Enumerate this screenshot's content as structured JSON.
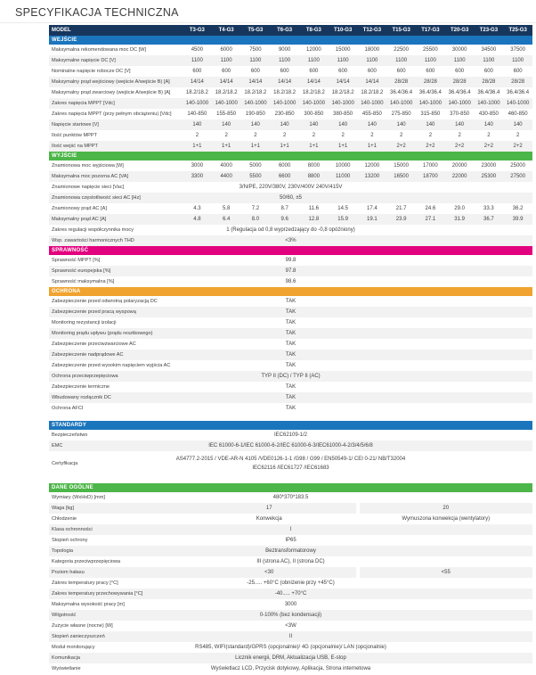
{
  "title": "SPECYFIKACJA TECHNICZNA",
  "colors": {
    "header_navy": "#17365d",
    "blue": "#1b75bc",
    "green": "#4cb648",
    "magenta": "#e2017e",
    "orange": "#f0a32e",
    "alt_row": "#f2f2f2",
    "text": "#3f3f3f"
  },
  "table": {
    "header": {
      "label": "MODEL",
      "models": [
        "T3-G3",
        "T4-G3",
        "T5-G3",
        "T6-G3",
        "T8-G3",
        "T10-G3",
        "T12-G3",
        "T15-G3",
        "T17-G3",
        "T20-G3",
        "T23-G3",
        "T25-G3"
      ]
    },
    "sections": [
      {
        "name": "WEJŚCIE",
        "color": "blue",
        "rows": [
          {
            "label": "Maksymalna rekomendowana moc DC [W]",
            "type": "cols",
            "values": [
              "4500",
              "6000",
              "7500",
              "9000",
              "12000",
              "15000",
              "18000",
              "22500",
              "25500",
              "30000",
              "34500",
              "37500"
            ]
          },
          {
            "label": "Maksymalne napięcie DC [V]",
            "type": "cols",
            "values": [
              "1100",
              "1100",
              "1100",
              "1100",
              "1100",
              "1100",
              "1100",
              "1100",
              "1100",
              "1100",
              "1100",
              "1100"
            ]
          },
          {
            "label": "Nominalne napięcie robocze DC [V]",
            "type": "cols",
            "values": [
              "600",
              "600",
              "600",
              "600",
              "600",
              "600",
              "600",
              "600",
              "600",
              "600",
              "600",
              "600"
            ]
          },
          {
            "label": "Maksymalny prąd wejściowy (wejście A/wejście B) [A]",
            "type": "cols",
            "values": [
              "14/14",
              "14/14",
              "14/14",
              "14/14",
              "14/14",
              "14/14",
              "14/14",
              "28/28",
              "28/28",
              "28/28",
              "28/28",
              "28/28"
            ]
          },
          {
            "label": "Maksymalny prąd zwarciowy (wejście A/wejście B) [A]",
            "type": "cols",
            "values": [
              "18.2/18.2",
              "18.2/18.2",
              "18.2/18.2",
              "18.2/18.2",
              "18.2/18.2",
              "18.2/18.2",
              "18.2/18.2",
              "36.4/36.4",
              "36.4/36.4",
              "36.4/36.4",
              "36.4/36.4",
              "36.4/36.4"
            ]
          },
          {
            "label": "Zakres napięcia MPPT [Vdc]",
            "type": "cols",
            "values": [
              "140-1000",
              "140-1000",
              "140-1000",
              "140-1000",
              "140-1000",
              "140-1000",
              "140-1000",
              "140-1000",
              "140-1000",
              "140-1000",
              "140-1000",
              "140-1000"
            ]
          },
          {
            "label": "Zakres napięcia MPPT (przy pełnym obciążeniu) [Vdc]",
            "type": "cols",
            "values": [
              "140-850",
              "155-850",
              "190-850",
              "230-850",
              "300-850",
              "380-850",
              "455-850",
              "275-850",
              "315-850",
              "370-850",
              "430-850",
              "460-850"
            ]
          },
          {
            "label": "Napięcie startowe [V]",
            "type": "cols",
            "values": [
              "140",
              "140",
              "140",
              "140",
              "140",
              "140",
              "140",
              "140",
              "140",
              "140",
              "140",
              "140"
            ]
          },
          {
            "label": "Ilość punktów MPPT",
            "type": "cols",
            "values": [
              "2",
              "2",
              "2",
              "2",
              "2",
              "2",
              "2",
              "2",
              "2",
              "2",
              "2",
              "2"
            ]
          },
          {
            "label": "Ilość wejść na MPPT",
            "type": "cols",
            "values": [
              "1+1",
              "1+1",
              "1+1",
              "1+1",
              "1+1",
              "1+1",
              "1+1",
              "2+2",
              "2+2",
              "2+2",
              "2+2",
              "2+2"
            ]
          }
        ]
      },
      {
        "name": "WYJŚCIE",
        "color": "green",
        "rows": [
          {
            "label": "Znamionowa moc wyjściowa [W]",
            "type": "cols",
            "values": [
              "3000",
              "4000",
              "5000",
              "6000",
              "8000",
              "10000",
              "12000",
              "15000",
              "17000",
              "20000",
              "23000",
              "25000"
            ]
          },
          {
            "label": "Maksymalna moc pozorna AC [VA]",
            "type": "cols",
            "values": [
              "3300",
              "4400",
              "5500",
              "6600",
              "8800",
              "11000",
              "13200",
              "16500",
              "18700",
              "22000",
              "25300",
              "27500"
            ]
          },
          {
            "label": "Znamionowe napięcie sieci [Vac]",
            "type": "span",
            "value": "3/N/PE, 220V/380V, 230V/400V 240V/415V"
          },
          {
            "label": "Znamionowa częstotliwość sieci AC [Hz]",
            "type": "span",
            "value": "50/60, ±5"
          },
          {
            "label": "Znamionowy prąd AC [A]",
            "type": "cols",
            "values": [
              "4.3",
              "5.8",
              "7.2",
              "8.7",
              "11.6",
              "14.5",
              "17.4",
              "21.7",
              "24.6",
              "29.0",
              "33.3",
              "36.2"
            ]
          },
          {
            "label": "Maksymalny prąd AC [A]",
            "type": "cols",
            "values": [
              "4.8",
              "6.4",
              "8.0",
              "9.6",
              "12.8",
              "15.9",
              "19.1",
              "23.9",
              "27.1",
              "31.9",
              "36.7",
              "39.9"
            ]
          },
          {
            "label": "Zakres regulacji współczynnika mocy",
            "type": "span",
            "value": "1 (Regulacja od 0,8 wyprzedzający do -0,8 opóźniony)"
          },
          {
            "label": "Wsp. zawartości harmonicznych THD",
            "type": "span",
            "value": "<3%"
          }
        ]
      },
      {
        "name": "SPRAWNOŚĆ",
        "color": "magenta",
        "rows": [
          {
            "label": "Sprawność MPPT [%]",
            "type": "span",
            "value": "99.8"
          },
          {
            "label": "Sprawność europejska [%]",
            "type": "span",
            "value": "97.8"
          },
          {
            "label": "Sprawność maksymalna [%]",
            "type": "span",
            "value": "98.6"
          }
        ]
      },
      {
        "name": "OCHRONA",
        "color": "orange",
        "rows": [
          {
            "label": "Zabezpieczenie przed odwrotną polaryzacją DC",
            "type": "span",
            "value": "TAK"
          },
          {
            "label": "Zabezpieczenie przed pracą wyspową",
            "type": "span",
            "value": "TAK"
          },
          {
            "label": "Monitoring rezystancji izolacji",
            "type": "span",
            "value": "TAK"
          },
          {
            "label": "Monitoring prądu upływu (prądu resztkowego)",
            "type": "span",
            "value": "TAK"
          },
          {
            "label": "Zabezpieczenie przeciwzwarciowe AC",
            "type": "span",
            "value": "TAK"
          },
          {
            "label": "Zabezpieczenie nadprądowe AC",
            "type": "span",
            "value": "TAK"
          },
          {
            "label": "Zabezpieczenie przed wysokim napięciem wyjścia AC",
            "type": "span",
            "value": "TAK"
          },
          {
            "label": "Ochrona przeciwprzepięciowa",
            "type": "span",
            "value": "TYP II (DC) / TYP II (AC)"
          },
          {
            "label": "Zabezpieczenie termiczne",
            "type": "span",
            "value": "TAK"
          },
          {
            "label": "Wbudowany rozłącznik DC",
            "type": "span",
            "value": "TAK"
          },
          {
            "label": "Ochrona AFCI",
            "type": "span",
            "value": "TAK"
          }
        ]
      },
      {
        "name": "STANDARDY",
        "color": "blue",
        "gap_before": true,
        "rows": [
          {
            "label": "Bezpieczeństwo",
            "type": "span",
            "value": "IEC62109-1/2"
          },
          {
            "label": "EMC",
            "type": "span",
            "value": "IEC 61000-6-1/IEC 61000-6-2/IEC 61000-6-3/IEC61000-4-2/3/4/5/6/8"
          },
          {
            "label": "Certyfikacja",
            "type": "span",
            "tall": true,
            "value": [
              "AS4777.2-2015 / VDE-AR-N 4105 /VDE0126-1-1  /G98  / G99  / EN50549-1/ CEI 0-21/ NB/T32004",
              "IEC62116 /IEC61727 /IEC61683"
            ]
          }
        ]
      },
      {
        "name": "DANE OGÓLNE",
        "color": "green",
        "gap_before": true,
        "rows": [
          {
            "label": "Wymiary (WxHxD) [mm]",
            "type": "span",
            "value": "480*370*183.5"
          },
          {
            "label": "Waga [kg]",
            "type": "split",
            "values": [
              "17",
              "20"
            ]
          },
          {
            "label": "Chłodzenie",
            "type": "split",
            "values": [
              "Konwekcja",
              "Wymuszona konwekcja (wentylatory)"
            ]
          },
          {
            "label": "Klasa ochronności",
            "type": "span",
            "value": "I"
          },
          {
            "label": "Stopień ochrony",
            "type": "span",
            "value": "IP65"
          },
          {
            "label": "Topologia",
            "type": "span",
            "value": "Beztransformatorowy"
          },
          {
            "label": "Kategoria przeciwprzepięciowa",
            "type": "span",
            "value": "III (strona AC), II (strona DC)"
          },
          {
            "label": "Poziom hałasu",
            "type": "split",
            "values": [
              "<30",
              "<55"
            ]
          },
          {
            "label": "Zakres temperatury pracy [°C]",
            "type": "span",
            "value": "-25..... +60°C (obniżenie przy +45°C)"
          },
          {
            "label": "Zakres temperatury przechowywania  [°C]",
            "type": "span",
            "value": "-40..... +70°C"
          },
          {
            "label": "Maksymalna wysokość pracy [m]",
            "type": "span",
            "value": "3000"
          },
          {
            "label": "Wilgotność",
            "type": "span",
            "value": "0-100% (bez kondensacji)"
          },
          {
            "label": "Zużycie własne (nocne) [W]",
            "type": "span",
            "value": "<3W"
          },
          {
            "label": "Stopień zanieczyszczeń",
            "type": "span",
            "value": "II"
          },
          {
            "label": "Moduł monitorujący",
            "type": "span",
            "value": "RS485, WIFI(standard)/GPRS (opcjonalnie)/ 4G (opcjonalnie)/ LAN (opcjonalnie)"
          },
          {
            "label": "Komunikacja",
            "type": "span",
            "value": "Licznik energii, DRM, Aktualizacja USB, E-stop"
          },
          {
            "label": "Wyświetlanie",
            "type": "span",
            "value": "Wyświetlacz LCD, Przycisk dotykowy, Aplikacja, Strona internetowa"
          }
        ]
      }
    ]
  }
}
